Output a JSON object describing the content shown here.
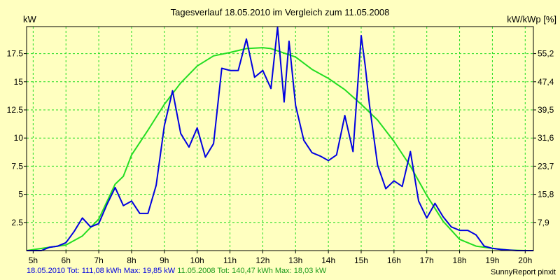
{
  "chart_data": {
    "type": "line",
    "title": "Tagesverlauf 18.05.2010 im Vergleich zum 11.05.2008",
    "ylabel_left": "kW",
    "ylabel_right": "kW/kWp [%]",
    "x_ticks": [
      "5h",
      "6h",
      "7h",
      "8h",
      "9h",
      "10h",
      "11h",
      "12h",
      "13h",
      "14h",
      "15h",
      "16h",
      "17h",
      "18h",
      "19h",
      "20h"
    ],
    "xlim": [
      4.8,
      20.25
    ],
    "ylim": [
      0,
      19.9
    ],
    "y_ticks_left": [
      2.5,
      5,
      7.5,
      10,
      12.5,
      15,
      17.5
    ],
    "y_ticks_right": [
      {
        "at": 2.5,
        "label": "7,9"
      },
      {
        "at": 5,
        "label": "15,8"
      },
      {
        "at": 7.5,
        "label": "23,7"
      },
      {
        "at": 10,
        "label": "31,6"
      },
      {
        "at": 12.5,
        "label": "39,5"
      },
      {
        "at": 15,
        "label": "47,4"
      },
      {
        "at": 17.5,
        "label": "55,2"
      }
    ],
    "grid": true,
    "series": [
      {
        "name": "18.05.2010",
        "color": "#0000e0",
        "x": [
          4.8,
          5.25,
          5.5,
          5.75,
          6.0,
          6.25,
          6.5,
          6.75,
          7.0,
          7.25,
          7.5,
          7.75,
          8.0,
          8.25,
          8.5,
          8.75,
          9.0,
          9.25,
          9.5,
          9.75,
          10.0,
          10.25,
          10.5,
          10.75,
          11.0,
          11.25,
          11.5,
          11.75,
          12.0,
          12.25,
          12.45,
          12.65,
          12.8,
          13.0,
          13.25,
          13.5,
          13.75,
          14.0,
          14.25,
          14.5,
          14.75,
          15.0,
          15.12,
          15.25,
          15.5,
          15.75,
          16.0,
          16.25,
          16.5,
          16.75,
          17.0,
          17.25,
          17.5,
          17.75,
          18.0,
          18.25,
          18.5,
          18.75,
          19.0,
          19.25,
          19.5,
          19.75,
          20.0,
          20.25
        ],
        "y": [
          0,
          0,
          0.3,
          0.4,
          0.7,
          1.7,
          2.9,
          2.1,
          2.4,
          4.1,
          5.6,
          4.0,
          4.4,
          3.3,
          3.3,
          5.8,
          11.1,
          14.2,
          10.4,
          9.2,
          10.9,
          8.3,
          9.5,
          16.2,
          16.0,
          16.0,
          18.8,
          15.4,
          16.0,
          14.4,
          19.85,
          13.2,
          18.6,
          12.9,
          9.8,
          8.7,
          8.4,
          8.0,
          8.5,
          12.0,
          8.8,
          19.1,
          16.5,
          13.0,
          7.6,
          5.5,
          6.2,
          5.7,
          8.8,
          4.4,
          2.9,
          4.2,
          3.0,
          2.1,
          1.8,
          1.8,
          1.4,
          0.4,
          0.2,
          0.1,
          0.05,
          0,
          0,
          0
        ]
      },
      {
        "name": "11.05.2008",
        "color": "#22dd22",
        "x": [
          4.8,
          5.5,
          6.0,
          6.5,
          7.0,
          7.5,
          7.75,
          8.0,
          8.5,
          9.0,
          9.5,
          10.0,
          10.5,
          11.0,
          11.5,
          12.0,
          12.25,
          12.5,
          13.0,
          13.5,
          14.0,
          14.5,
          15.0,
          15.5,
          16.0,
          16.5,
          17.0,
          17.5,
          18.0,
          18.5,
          19.0,
          19.5,
          20.0,
          20.25
        ],
        "y": [
          0,
          0.3,
          0.5,
          1.3,
          2.8,
          5.9,
          6.6,
          8.5,
          10.7,
          13.0,
          14.9,
          16.4,
          17.3,
          17.6,
          17.95,
          18.03,
          17.95,
          17.7,
          17.2,
          16.1,
          15.3,
          14.3,
          13.0,
          11.6,
          9.7,
          7.5,
          4.9,
          2.6,
          1.0,
          0.4,
          0.2,
          0.05,
          0,
          0
        ]
      }
    ]
  },
  "footer": {
    "series1_label": "18.05.2010 Tot: 111,08 kWh Max: 19,85 kW",
    "series2_label": "11.05.2008 Tot: 140,47 kWh Max: 18,03 kW",
    "brand": "SunnyReport pinxit"
  },
  "colors": {
    "background": "#ffffc0",
    "axis": "#000000",
    "grid": "#22dd22"
  }
}
